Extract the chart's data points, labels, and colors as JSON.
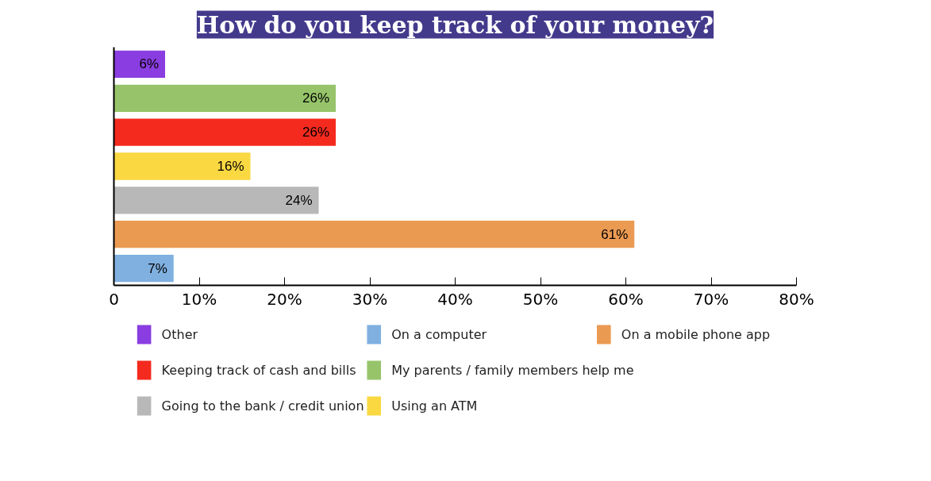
{
  "chart_data": {
    "type": "bar",
    "orientation": "horizontal",
    "title": "How do you keep track of your money?",
    "categories": [
      null,
      null,
      null,
      null,
      null,
      null,
      null
    ],
    "series": [
      {
        "name": "Other",
        "color": "#8a3de0",
        "values": [
          6,
          null,
          null,
          null,
          null,
          null,
          null
        ],
        "value_labels": [
          "6%",
          null,
          null,
          null,
          null,
          null,
          null
        ]
      },
      {
        "name": "Keeping track of cash and bills",
        "color": "#f42a1e",
        "values": [
          null,
          null,
          26,
          null,
          null,
          null,
          null
        ],
        "value_labels": [
          null,
          null,
          "26%",
          null,
          null,
          null,
          null
        ]
      },
      {
        "name": "Going to the bank / credit union",
        "color": "#b8b8b8",
        "values": [
          null,
          null,
          null,
          null,
          24,
          null,
          null
        ],
        "value_labels": [
          null,
          null,
          null,
          null,
          "24%",
          null,
          null
        ]
      },
      {
        "name": "On a computer",
        "color": "#7fb0e0",
        "values": [
          null,
          null,
          null,
          null,
          null,
          null,
          7
        ],
        "value_labels": [
          null,
          null,
          null,
          null,
          null,
          null,
          "7%"
        ]
      },
      {
        "name": "My parents / family members help me",
        "color": "#97c46a",
        "values": [
          null,
          26,
          null,
          null,
          null,
          null,
          null
        ],
        "value_labels": [
          null,
          "26%",
          null,
          null,
          null,
          null,
          null
        ]
      },
      {
        "name": "Using an ATM",
        "color": "#fad842",
        "values": [
          null,
          null,
          null,
          16,
          null,
          null,
          null
        ],
        "value_labels": [
          null,
          null,
          null,
          "16%",
          null,
          null,
          null
        ]
      },
      {
        "name": "On a mobile phone app",
        "color": "#eb9a52",
        "values": [
          null,
          null,
          null,
          null,
          null,
          61,
          null
        ],
        "value_labels": [
          null,
          null,
          null,
          null,
          null,
          "61%",
          null
        ]
      }
    ],
    "xlim": [
      0,
      80
    ],
    "xticks": [
      0,
      {
        "value": 10,
        "label": "10%"
      },
      {
        "value": 20,
        "label": "20%"
      },
      {
        "value": 30,
        "label": "30%"
      },
      {
        "value": 40,
        "label": "40%"
      },
      {
        "value": 50,
        "label": "50%"
      },
      {
        "value": 60,
        "label": "60%"
      },
      {
        "value": 70,
        "label": "70%"
      },
      {
        "value": 80,
        "label": "80%"
      }
    ],
    "grid": false,
    "legend": "bottom"
  }
}
